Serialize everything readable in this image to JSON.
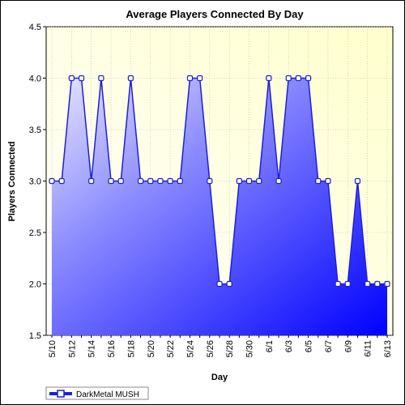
{
  "chart_data": {
    "type": "area",
    "title": "Average Players Connected By Day",
    "xlabel": "Day",
    "ylabel": "Players Connected",
    "ylim": [
      1.5,
      4.5
    ],
    "yticks": [
      "1.5",
      "2.0",
      "2.5",
      "3.0",
      "3.5",
      "4.0",
      "4.5"
    ],
    "x": [
      "5/10",
      "5/11",
      "5/12",
      "5/13",
      "5/14",
      "5/15",
      "5/16",
      "5/17",
      "5/18",
      "5/19",
      "5/20",
      "5/21",
      "5/22",
      "5/23",
      "5/24",
      "5/25",
      "5/26",
      "5/27",
      "5/28",
      "5/29",
      "5/30",
      "5/31",
      "6/1",
      "6/2",
      "6/3",
      "6/4",
      "6/5",
      "6/6",
      "6/7",
      "6/8",
      "6/9",
      "6/10",
      "6/11",
      "6/12",
      "6/13"
    ],
    "xtick_labels": [
      "5/10",
      "5/12",
      "5/14",
      "5/16",
      "5/18",
      "5/20",
      "5/22",
      "5/24",
      "5/26",
      "5/28",
      "5/30",
      "6/1",
      "6/3",
      "6/5",
      "6/7",
      "6/9",
      "6/11",
      "6/13"
    ],
    "series": [
      {
        "name": "DarkMetal MUSH",
        "values": [
          3,
          3,
          4,
          4,
          3,
          4,
          3,
          3,
          4,
          3,
          3,
          3,
          3,
          3,
          4,
          4,
          3,
          2,
          2,
          3,
          3,
          3,
          4,
          3,
          4,
          4,
          4,
          3,
          3,
          2,
          2,
          3,
          2,
          2,
          2
        ]
      }
    ],
    "grid": true,
    "legend": "bottom-left",
    "colors": {
      "line": "#1f1fd6",
      "marker_fill": "#ffffff",
      "area_light": "#e6e6ff",
      "area_dark": "#0000ff",
      "plot_bg_light": "#fffff0",
      "plot_bg_tint": "#ffffcc",
      "grid": "#b8b8a0"
    }
  }
}
